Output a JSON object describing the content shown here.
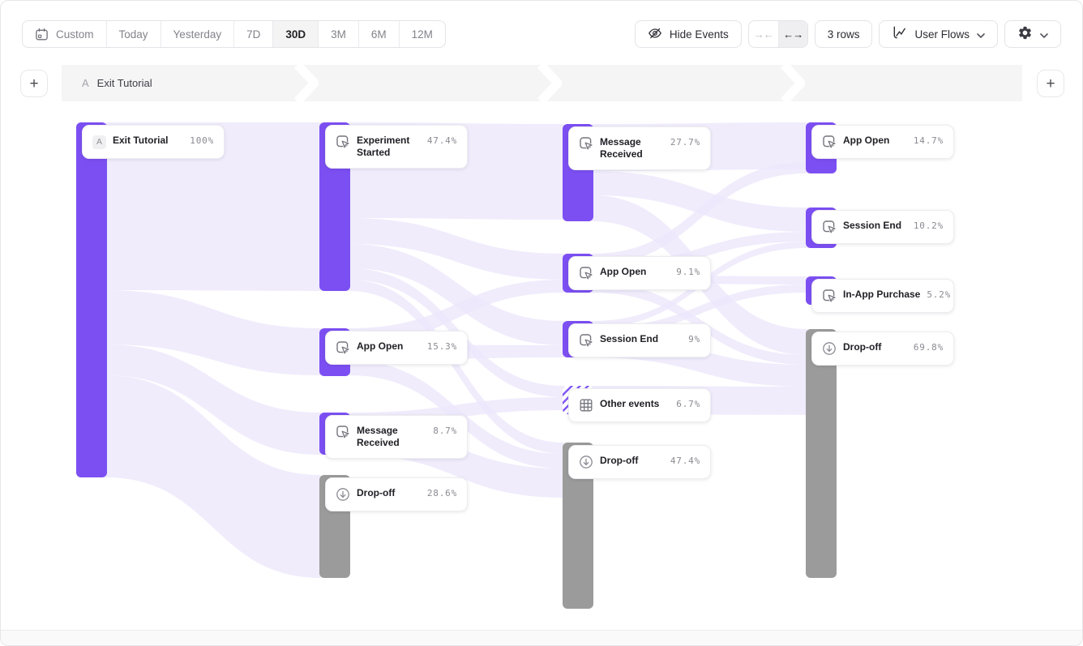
{
  "toolbar": {
    "date_ranges": [
      {
        "id": "custom",
        "label": "Custom",
        "icon": "calendar",
        "selected": false
      },
      {
        "id": "today",
        "label": "Today",
        "selected": false
      },
      {
        "id": "yesterday",
        "label": "Yesterday",
        "selected": false
      },
      {
        "id": "7d",
        "label": "7D",
        "selected": false
      },
      {
        "id": "30d",
        "label": "30D",
        "selected": true
      },
      {
        "id": "3m",
        "label": "3M",
        "selected": false
      },
      {
        "id": "6m",
        "label": "6M",
        "selected": false
      },
      {
        "id": "12m",
        "label": "12M",
        "selected": false
      }
    ],
    "hide_events": {
      "label": "Hide Events",
      "icon": "eye-off-icon"
    },
    "width_toggle": {
      "collapse_glyph": "→←",
      "expand_glyph": "←→",
      "state": "expanded"
    },
    "rows_button": {
      "label": "3 rows"
    },
    "view_selector": {
      "label": "User Flows",
      "icon": "flow-chart-icon",
      "chevron": "chevron-down-icon"
    },
    "settings": {
      "icon": "gear-icon",
      "chevron": "chevron-down-icon"
    }
  },
  "flow_header": {
    "steps": [
      {
        "badge": "A",
        "label": "Exit Tutorial"
      }
    ],
    "add_step_glyph": "+"
  },
  "chart_data": {
    "type": "sankey",
    "unit": "% of users",
    "columns": [
      {
        "nodes": [
          {
            "label": "Exit Tutorial",
            "value": "100%",
            "kind": "start",
            "badge": "A"
          }
        ]
      },
      {
        "nodes": [
          {
            "label": "Experiment Started",
            "value": "47.4%",
            "kind": "event"
          },
          {
            "label": "App Open",
            "value": "15.3%",
            "kind": "event"
          },
          {
            "label": "Message Received",
            "value": "8.7%",
            "kind": "event"
          },
          {
            "label": "Drop-off",
            "value": "28.6%",
            "kind": "dropoff"
          }
        ]
      },
      {
        "nodes": [
          {
            "label": "Message Received",
            "value": "27.7%",
            "kind": "event"
          },
          {
            "label": "App Open",
            "value": "9.1%",
            "kind": "event"
          },
          {
            "label": "Session End",
            "value": "9%",
            "kind": "event"
          },
          {
            "label": "Other events",
            "value": "6.7%",
            "kind": "other"
          },
          {
            "label": "Drop-off",
            "value": "47.4%",
            "kind": "dropoff"
          }
        ]
      },
      {
        "nodes": [
          {
            "label": "App Open",
            "value": "14.7%",
            "kind": "event"
          },
          {
            "label": "Session End",
            "value": "10.2%",
            "kind": "event"
          },
          {
            "label": "In-App Purchase",
            "value": "5.2%",
            "kind": "event"
          },
          {
            "label": "Drop-off",
            "value": "69.8%",
            "kind": "dropoff"
          }
        ]
      }
    ],
    "links": [
      {
        "from": [
          0,
          "Exit Tutorial"
        ],
        "to": [
          1,
          "Experiment Started"
        ]
      },
      {
        "from": [
          0,
          "Exit Tutorial"
        ],
        "to": [
          1,
          "App Open"
        ]
      },
      {
        "from": [
          0,
          "Exit Tutorial"
        ],
        "to": [
          1,
          "Message Received"
        ]
      },
      {
        "from": [
          0,
          "Exit Tutorial"
        ],
        "to": [
          1,
          "Drop-off"
        ]
      },
      {
        "from": [
          1,
          "Experiment Started"
        ],
        "to": [
          2,
          "Message Received"
        ]
      },
      {
        "from": [
          1,
          "Experiment Started"
        ],
        "to": [
          2,
          "App Open"
        ]
      },
      {
        "from": [
          1,
          "Experiment Started"
        ],
        "to": [
          2,
          "Session End"
        ]
      },
      {
        "from": [
          1,
          "Experiment Started"
        ],
        "to": [
          2,
          "Other events"
        ]
      },
      {
        "from": [
          1,
          "Experiment Started"
        ],
        "to": [
          2,
          "Drop-off"
        ]
      },
      {
        "from": [
          1,
          "App Open"
        ],
        "to": [
          2,
          "App Open"
        ]
      },
      {
        "from": [
          1,
          "App Open"
        ],
        "to": [
          2,
          "Session End"
        ]
      },
      {
        "from": [
          1,
          "App Open"
        ],
        "to": [
          2,
          "Drop-off"
        ]
      },
      {
        "from": [
          1,
          "Message Received"
        ],
        "to": [
          2,
          "Other events"
        ]
      },
      {
        "from": [
          1,
          "Message Received"
        ],
        "to": [
          2,
          "Drop-off"
        ]
      },
      {
        "from": [
          2,
          "Message Received"
        ],
        "to": [
          3,
          "App Open"
        ]
      },
      {
        "from": [
          2,
          "Message Received"
        ],
        "to": [
          3,
          "Session End"
        ]
      },
      {
        "from": [
          2,
          "Message Received"
        ],
        "to": [
          3,
          "Drop-off"
        ]
      },
      {
        "from": [
          2,
          "App Open"
        ],
        "to": [
          3,
          "App Open"
        ]
      },
      {
        "from": [
          2,
          "App Open"
        ],
        "to": [
          3,
          "Session End"
        ]
      },
      {
        "from": [
          2,
          "App Open"
        ],
        "to": [
          3,
          "In-App Purchase"
        ]
      },
      {
        "from": [
          2,
          "App Open"
        ],
        "to": [
          3,
          "Drop-off"
        ]
      },
      {
        "from": [
          2,
          "Session End"
        ],
        "to": [
          3,
          "Session End"
        ]
      },
      {
        "from": [
          2,
          "Session End"
        ],
        "to": [
          3,
          "In-App Purchase"
        ]
      },
      {
        "from": [
          2,
          "Session End"
        ],
        "to": [
          3,
          "Drop-off"
        ]
      },
      {
        "from": [
          2,
          "Other events"
        ],
        "to": [
          3,
          "Drop-off"
        ]
      }
    ],
    "colors": {
      "event_bar": "#7C4FF2",
      "dropoff_bar": "#9B9B9B",
      "other_bar_hatch": "#8257F5",
      "ribbon": "#ECE7FB",
      "band_background": "#F5F5F6"
    }
  }
}
